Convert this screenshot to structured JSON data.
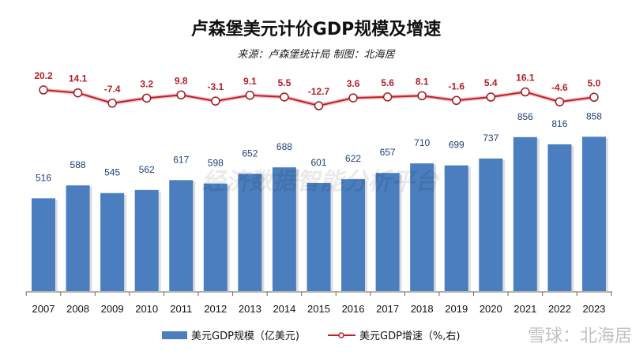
{
  "chart_data": {
    "type": "bar+line",
    "title": "卢森堡美元计价GDP规模及增速",
    "subtitle": "来源：卢森堡统计局  制图：北海居",
    "categories": [
      "2007",
      "2008",
      "2009",
      "2010",
      "2011",
      "2012",
      "2013",
      "2014",
      "2015",
      "2016",
      "2017",
      "2018",
      "2019",
      "2020",
      "2021",
      "2022",
      "2023"
    ],
    "series": [
      {
        "name": "美元GDP规模（亿美元)",
        "type": "bar",
        "axis": "left",
        "color": "#4a7ebf",
        "values": [
          516,
          588,
          545,
          562,
          617,
          598,
          652,
          688,
          601,
          622,
          657,
          710,
          699,
          737,
          856,
          816,
          858
        ]
      },
      {
        "name": "美元GDP增速（%,右)",
        "type": "line",
        "axis": "right",
        "color": "#c0202a",
        "values": [
          20.2,
          14.1,
          -7.4,
          3.2,
          9.8,
          -3.1,
          9.1,
          5.5,
          -12.7,
          3.6,
          5.6,
          8.1,
          -1.6,
          5.4,
          16.1,
          -4.6,
          5.0
        ]
      }
    ],
    "value_labels": {
      "bar": [
        "516",
        "588",
        "545",
        "562",
        "617",
        "598",
        "652",
        "688",
        "601",
        "622",
        "657",
        "710",
        "699",
        "737",
        "856",
        "816",
        "858"
      ],
      "line": [
        "20.2",
        "14.1",
        "-7.4",
        "3.2",
        "9.8",
        "-3.1",
        "9.1",
        "5.5",
        "-12.7",
        "3.6",
        "5.6",
        "8.1",
        "-1.6",
        "5.4",
        "16.1",
        "-4.6",
        "5.0"
      ]
    },
    "legend_position": "bottom",
    "grid": false
  },
  "watermarks": {
    "center": "经济数据智能分析平台",
    "corner": "雪球：北海居"
  }
}
